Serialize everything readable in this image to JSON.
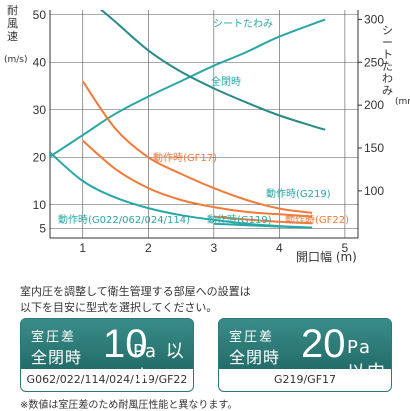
{
  "chart_data": {
    "type": "line",
    "title": "",
    "xlabel": "開口幅 (m)",
    "ylabel_left": "耐風速",
    "ylabel_left_unit": "(m/s)",
    "ylabel_right": "シートたわみ",
    "ylabel_right_unit": "(mm)",
    "xlim": [
      0.5,
      5.2
    ],
    "ylim_left": [
      3,
      51
    ],
    "ylim_right": [
      45,
      311
    ],
    "x_ticks": [
      1,
      2,
      3,
      4,
      5
    ],
    "y_left_ticks": [
      5,
      10,
      20,
      30,
      40,
      50
    ],
    "y_right_ticks": [
      100,
      150,
      200,
      250,
      300
    ],
    "grid": true,
    "series": [
      {
        "name": "シートたわみ",
        "axis": "right",
        "color": "#2aa6a6",
        "x": [
          0.5,
          1,
          1.5,
          2,
          2.5,
          3,
          3.5,
          4,
          4.7
        ],
        "values": [
          140,
          165,
          190,
          210,
          228,
          246,
          262,
          280,
          300
        ]
      },
      {
        "name": "全閉時",
        "axis": "left",
        "color": "#2a8a8a",
        "x": [
          1.2,
          1.5,
          2,
          2.5,
          3,
          3.5,
          4,
          4.5,
          4.7
        ],
        "values": [
          52,
          48.5,
          42.5,
          38,
          34.5,
          31.5,
          28.8,
          26.6,
          25.8
        ]
      },
      {
        "name": "動作時(GF17)",
        "axis": "left",
        "color": "#f07a3a",
        "x": [
          1,
          1.5,
          2,
          2.5,
          3,
          3.5,
          4,
          4.5
        ],
        "values": [
          36,
          26,
          20,
          16.5,
          13.5,
          11,
          9.2,
          8.3
        ]
      },
      {
        "name": "動作時(G219)",
        "axis": "left",
        "color": "#f07a3a",
        "x": [
          1,
          1.5,
          2,
          2.5,
          3,
          3.5,
          4,
          4.5
        ],
        "values": [
          23.5,
          17.5,
          13.5,
          11,
          9.5,
          8.5,
          8,
          7.5
        ]
      },
      {
        "name": "動作時(G022/062/024/114)",
        "axis": "left",
        "color": "#2aa6a6",
        "x": [
          0.5,
          1,
          1.5,
          2,
          2.5,
          3,
          3.5,
          4,
          4.5
        ],
        "values": [
          21,
          15,
          11.5,
          9.3,
          7.8,
          6.8,
          6,
          5.5,
          5.2
        ]
      },
      {
        "name": "動作時(G119)",
        "axis": "left",
        "color": "#2aa6a6",
        "x": [
          3,
          3.5,
          4,
          4.5
        ],
        "values": [
          6,
          5.7,
          5.4,
          5.2
        ]
      },
      {
        "name": "動作時(GF22)",
        "axis": "left",
        "color": "#f07a3a",
        "x": [
          3,
          3.5,
          4,
          4.5
        ],
        "values": [
          7.5,
          6.9,
          6.4,
          6.1
        ]
      }
    ],
    "curve_labels": [
      {
        "text": "シートたわみ",
        "color": "#2aa6a6"
      },
      {
        "text": "全閉時",
        "color": "#2aa6a6"
      },
      {
        "text": "動作時(GF17)",
        "color": "#f07a3a"
      },
      {
        "text": "動作時(G219)",
        "color": "#2aa6a6"
      },
      {
        "text": "動作時(G022/062/024/114)",
        "color": "#2aa6a6"
      },
      {
        "text": "動作時(G119)",
        "color": "#2aa6a6"
      },
      {
        "text": "動作時(GF22)",
        "color": "#f07a3a"
      }
    ]
  },
  "note": {
    "line1": "室内圧を調整して衛生管理する部屋への設置は",
    "line2": "以下を目安に型式を選択してください。"
  },
  "cards": [
    {
      "line1": "室圧差",
      "line2": "全閉時",
      "number": "10",
      "unit": "Pa 以内",
      "models": "G062/022/114/024/119/GF22"
    },
    {
      "line1": "室圧差",
      "line2": "全閉時",
      "number": "20",
      "unit": "Pa 以内",
      "models": "G219/GF17"
    }
  ],
  "footnote": "※数値は室圧差のため耐風圧性能と異なります。",
  "colors": {
    "teal": "#2aa6a6",
    "orange": "#f07a3a",
    "card": "#2b7a78",
    "grid": "#555555"
  }
}
